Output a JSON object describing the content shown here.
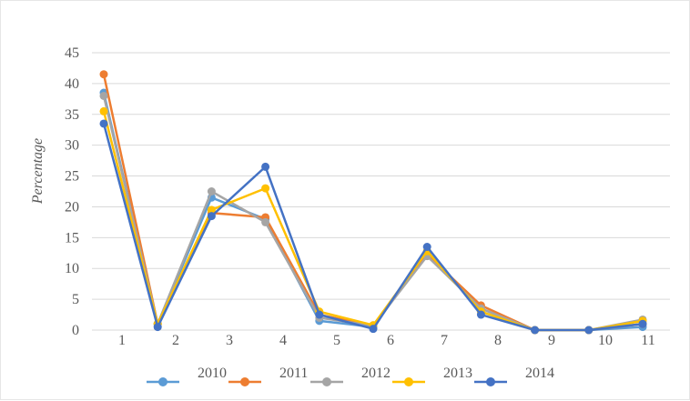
{
  "chart_data": {
    "type": "line",
    "title": "",
    "xlabel": "",
    "ylabel": "Percentage",
    "ylim": [
      0,
      45
    ],
    "yticks": [
      0,
      5,
      10,
      15,
      20,
      25,
      30,
      35,
      40,
      45
    ],
    "categories": [
      "1",
      "2",
      "3",
      "4",
      "5",
      "6",
      "7",
      "8",
      "9",
      "10",
      "11"
    ],
    "grid": "horizontal",
    "legend": "bottom",
    "series": [
      {
        "name": "2010",
        "color": "#5B9BD5",
        "values": [
          38.5,
          1.0,
          21.5,
          18.0,
          1.5,
          0.5,
          12.5,
          3.5,
          0,
          0,
          0.5
        ]
      },
      {
        "name": "2011",
        "color": "#ED7D31",
        "values": [
          41.5,
          1.0,
          19.0,
          18.3,
          2.5,
          0.7,
          12.3,
          4.0,
          0,
          0,
          1.0
        ]
      },
      {
        "name": "2012",
        "color": "#A5A5A5",
        "values": [
          38.0,
          1.0,
          22.5,
          17.5,
          2.0,
          0.7,
          12.0,
          3.5,
          0,
          0,
          1.7
        ]
      },
      {
        "name": "2013",
        "color": "#FFC000",
        "values": [
          35.5,
          1.0,
          19.5,
          23.0,
          3.0,
          0.8,
          12.8,
          3.0,
          0,
          0,
          1.5
        ]
      },
      {
        "name": "2014",
        "color": "#4472C4",
        "values": [
          33.5,
          0.5,
          18.5,
          26.5,
          2.5,
          0.2,
          13.5,
          2.5,
          0,
          0,
          1.0
        ]
      }
    ]
  }
}
